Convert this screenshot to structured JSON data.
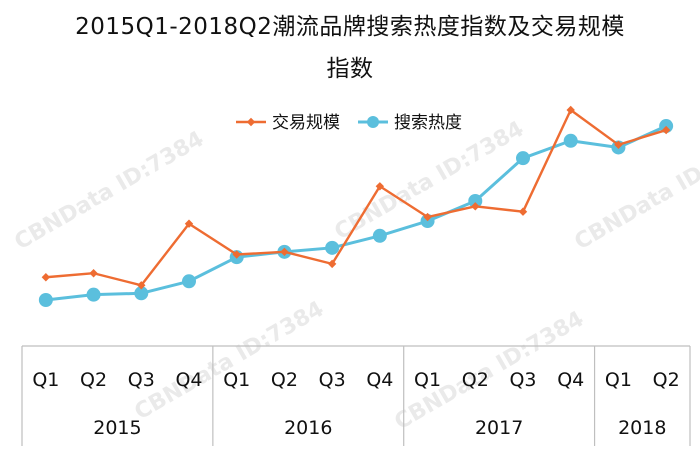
{
  "chart_data": {
    "type": "line",
    "title": "2015Q1-2018Q2潮流品牌搜索热度指数及交易规模指数",
    "x": [
      "Q1",
      "Q2",
      "Q3",
      "Q4",
      "Q1",
      "Q2",
      "Q3",
      "Q4",
      "Q1",
      "Q2",
      "Q3",
      "Q4",
      "Q1",
      "Q2"
    ],
    "groups": [
      {
        "label": "2015",
        "count": 4
      },
      {
        "label": "2016",
        "count": 4
      },
      {
        "label": "2017",
        "count": 4
      },
      {
        "label": "2018",
        "count": 2
      }
    ],
    "series": [
      {
        "name": "交易规模",
        "color": "#ee6c32",
        "marker": "diamond",
        "values": [
          78,
          81,
          72,
          118,
          95,
          97,
          88,
          146,
          123,
          131,
          127,
          203,
          177,
          188
        ]
      },
      {
        "name": "搜索热度",
        "color": "#5bbfdd",
        "marker": "circle",
        "values": [
          61,
          65,
          66,
          75,
          93,
          97,
          100,
          109,
          120,
          135,
          167,
          180,
          175,
          191
        ]
      }
    ],
    "legend_position": "top-center",
    "grid": false,
    "y_axis_visible": false,
    "watermark": "CBNData ID:7384"
  }
}
